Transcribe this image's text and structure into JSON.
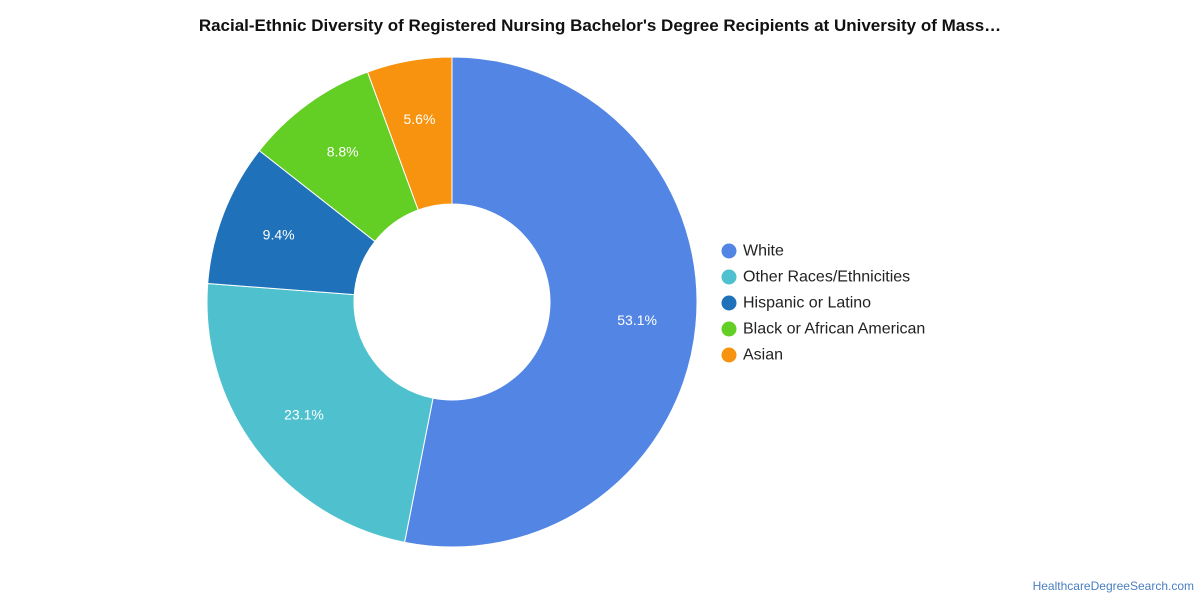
{
  "chart_data": {
    "type": "pie",
    "subtype": "donut",
    "title": "Racial-Ethnic Diversity of Registered Nursing Bachelor's Degree Recipients at University of Mass…",
    "categories": [
      "White",
      "Other Races/Ethnicities",
      "Hispanic or Latino",
      "Black or African American",
      "Asian"
    ],
    "values": [
      53.1,
      23.1,
      9.4,
      8.8,
      5.6
    ],
    "labels": [
      "53.1%",
      "23.1%",
      "9.4%",
      "8.8%",
      "5.6%"
    ],
    "colors": [
      "#5386e4",
      "#4fc1ce",
      "#1f72ba",
      "#63ce24",
      "#f7930f"
    ],
    "legend": {
      "position": "right"
    }
  },
  "footer": {
    "credit": "HealthcareDegreeSearch.com"
  }
}
